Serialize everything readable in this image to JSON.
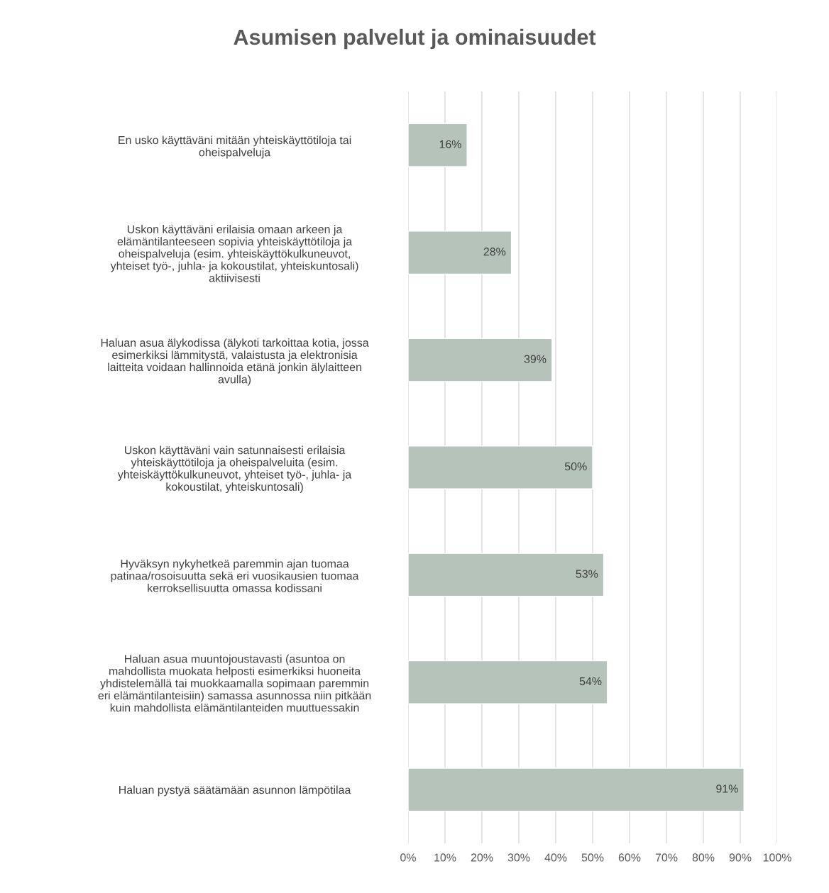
{
  "chart_data": {
    "type": "bar",
    "orientation": "horizontal",
    "title": "Asumisen palvelut ja ominaisuudet",
    "categories": [
      "En usko käyttäväni mitään yhteiskäyttötiloja tai\noheispalveluja",
      "Uskon käyttäväni erilaisia omaan arkeen ja\nelämäntilanteeseen sopivia yhteiskäyttötiloja ja\noheispalveluja (esim. yhteiskäyttökulkuneuvot,\nyhteiset työ-, juhla- ja kokoustilat, yhteiskuntosali)\naktiivisesti",
      "Haluan asua älykodissa (älykoti tarkoittaa kotia, jossa\nesimerkiksi lämmitystä, valaistusta ja elektronisia\nlaitteita voidaan hallinnoida etänä jonkin älylaitteen\navulla)",
      "Uskon käyttäväni vain satunnaisesti erilaisia\nyhteiskäyttötiloja ja oheispalveluita (esim.\nyhteiskäyttökulkuneuvot, yhteiset työ-, juhla- ja\nkokoustilat, yhteiskuntosali)",
      "Hyväksyn nykyhetkeä paremmin ajan tuomaa\npatinaa/rosoisuutta sekä eri vuosikausien tuomaa\nkerroksellisuutta omassa kodissani",
      "Haluan asua muuntojoustavasti (asuntoa on\nmahdollista muokata helposti esimerkiksi huoneita\nyhdistelemällä tai muokkaamalla sopimaan paremmin\neri elämäntilanteisiin) samassa asunnossa niin pitkään\nkuin mahdollista elämäntilanteiden muuttuessakin",
      "Haluan pystyä säätämään asunnon lämpötilaa"
    ],
    "values": [
      16,
      28,
      39,
      50,
      53,
      54,
      91
    ],
    "value_labels": [
      "16%",
      "28%",
      "39%",
      "50%",
      "53%",
      "54%",
      "91%"
    ],
    "color": "#b6c3bb",
    "xlim": [
      0,
      100
    ],
    "xticks": [
      {
        "value": 0,
        "label": "0%"
      },
      {
        "value": 10,
        "label": "10%"
      },
      {
        "value": 20,
        "label": "20%"
      },
      {
        "value": 30,
        "label": "30%"
      },
      {
        "value": 40,
        "label": "40%"
      },
      {
        "value": 50,
        "label": "50%"
      },
      {
        "value": 60,
        "label": "60%"
      },
      {
        "value": 70,
        "label": "70%"
      },
      {
        "value": 80,
        "label": "80%"
      },
      {
        "value": 90,
        "label": "90%"
      },
      {
        "value": 100,
        "label": "100%"
      }
    ],
    "grid": "x"
  }
}
